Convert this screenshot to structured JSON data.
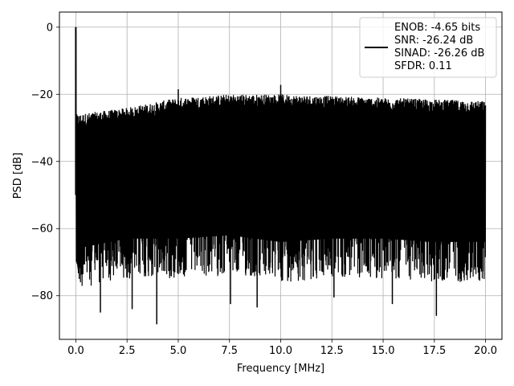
{
  "chart_data": {
    "type": "line",
    "title": "",
    "xlabel": "Frequency [MHz]",
    "ylabel": "PSD [dB]",
    "xlim": [
      -0.8,
      20.8
    ],
    "ylim": [
      -93,
      4.5
    ],
    "xticks": [
      0.0,
      2.5,
      5.0,
      7.5,
      10.0,
      12.5,
      15.0,
      17.5,
      20.0
    ],
    "xtick_labels": [
      "0.0",
      "2.5",
      "5.0",
      "7.5",
      "10.0",
      "12.5",
      "15.0",
      "17.5",
      "20.0"
    ],
    "yticks": [
      0,
      -20,
      -40,
      -60,
      -80
    ],
    "ytick_labels": [
      "0",
      "−20",
      "−40",
      "−60",
      "−80"
    ],
    "grid": true,
    "legend_position": "upper right",
    "line_color": "#000000",
    "series": [
      {
        "name": "ENOB: -4.65 bits\nSNR: -26.24 dB\nSINAD: -26.26 dB\nSFDR: 0.11",
        "legend_lines": [
          "ENOB: -4.65 bits",
          "SNR: -26.24 dB",
          "SINAD: -26.26 dB",
          "SFDR: 0.11"
        ],
        "peak": {
          "x": 0.0,
          "y": 0.0
        },
        "noise_floor": {
          "x": [
            0,
            2.5,
            5,
            7.5,
            10,
            12.5,
            15,
            17.5,
            20
          ],
          "upper_envelope": [
            -27,
            -25,
            -22,
            -21,
            -21,
            -21.5,
            -22,
            -22.5,
            -23
          ],
          "lower_envelope": [
            -78,
            -75,
            -75,
            -74,
            -76,
            -75,
            -75,
            -76,
            -76
          ]
        },
        "notable_minima": [
          {
            "x": 1.2,
            "y": -85
          },
          {
            "x": 2.75,
            "y": -84
          },
          {
            "x": 3.95,
            "y": -88.5
          },
          {
            "x": 7.55,
            "y": -82.5
          },
          {
            "x": 8.85,
            "y": -83.5
          },
          {
            "x": 12.6,
            "y": -80.5
          },
          {
            "x": 15.45,
            "y": -82.5
          },
          {
            "x": 17.6,
            "y": -86
          }
        ],
        "notable_maxima": [
          {
            "x": 10.0,
            "y": -17.2
          },
          {
            "x": 5.0,
            "y": -18.5
          }
        ]
      }
    ]
  }
}
